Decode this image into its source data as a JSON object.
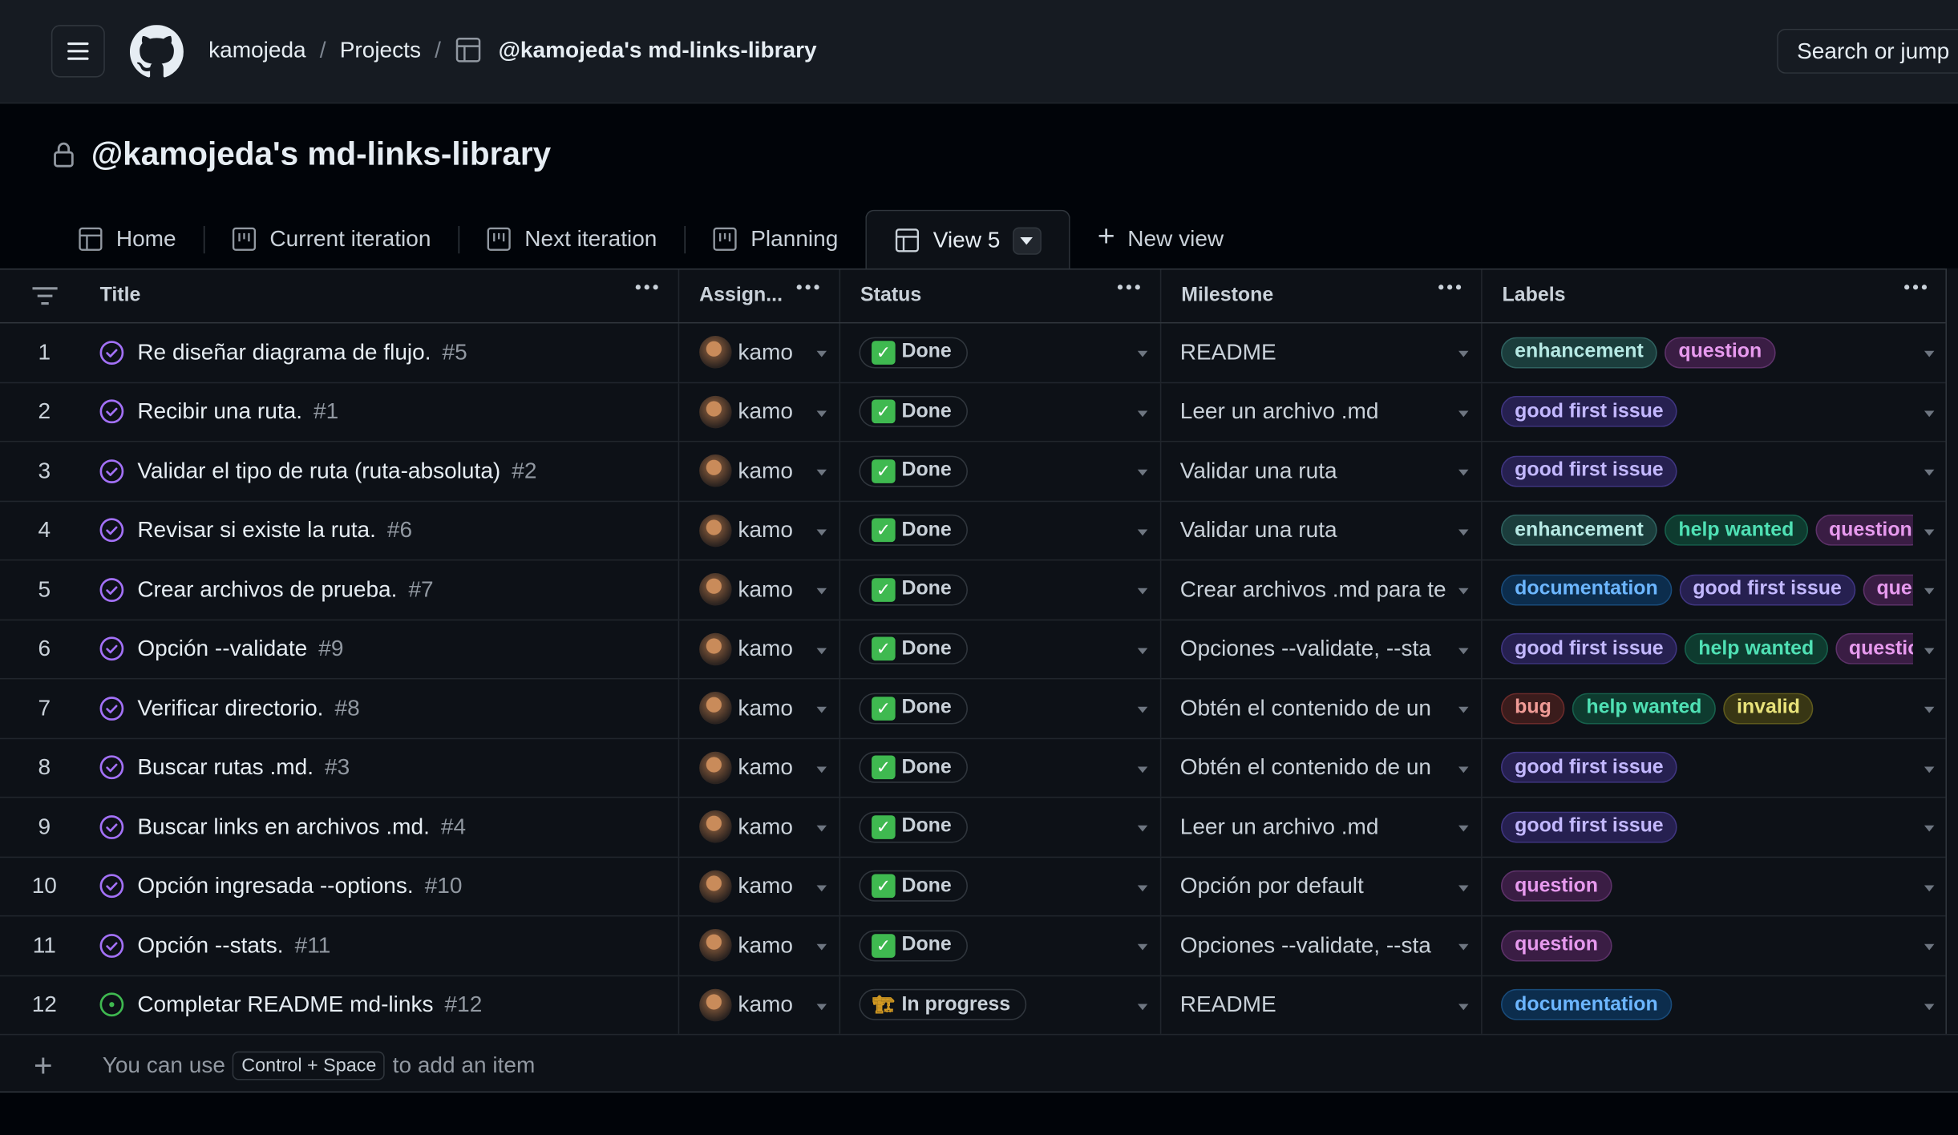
{
  "header": {
    "owner": "kamojeda",
    "section": "Projects",
    "project": "@kamojeda's md-links-library",
    "search_placeholder": "Search or jump"
  },
  "title": "@kamojeda's md-links-library",
  "tabs": [
    {
      "label": "Home",
      "icon": "table-icon"
    },
    {
      "label": "Current iteration",
      "icon": "board-icon"
    },
    {
      "label": "Next iteration",
      "icon": "board-icon"
    },
    {
      "label": "Planning",
      "icon": "board-icon"
    },
    {
      "label": "View 5",
      "icon": "table-icon",
      "active": true
    },
    {
      "label": "New view",
      "icon": "plus-icon"
    }
  ],
  "columns": {
    "title": "Title",
    "assignees": "Assign...",
    "status": "Status",
    "milestone": "Milestone",
    "labels": "Labels"
  },
  "rows": [
    {
      "n": "1",
      "title": "Re diseñar diagrama de flujo.",
      "issue": "#5",
      "assignee": "kamo",
      "status": "Done",
      "milestone": "README",
      "labels": [
        "enhancement",
        "question"
      ]
    },
    {
      "n": "2",
      "title": "Recibir una ruta.",
      "issue": "#1",
      "assignee": "kamo",
      "status": "Done",
      "milestone": "Leer un archivo .md",
      "labels": [
        "good first issue"
      ]
    },
    {
      "n": "3",
      "title": "Validar el tipo de ruta (ruta-absoluta)",
      "issue": "#2",
      "assignee": "kamo",
      "status": "Done",
      "milestone": "Validar una ruta",
      "labels": [
        "good first issue"
      ]
    },
    {
      "n": "4",
      "title": "Revisar si existe la ruta.",
      "issue": "#6",
      "assignee": "kamo",
      "status": "Done",
      "milestone": "Validar una ruta",
      "labels": [
        "enhancement",
        "help wanted",
        "question"
      ]
    },
    {
      "n": "5",
      "title": "Crear archivos de prueba.",
      "issue": "#7",
      "assignee": "kamo",
      "status": "Done",
      "milestone": "Crear archivos .md para te",
      "labels": [
        "documentation",
        "good first issue",
        "ques"
      ]
    },
    {
      "n": "6",
      "title": "Opción --validate",
      "issue": "#9",
      "assignee": "kamo",
      "status": "Done",
      "milestone": "Opciones --validate, --sta",
      "labels": [
        "good first issue",
        "help wanted",
        "questio"
      ]
    },
    {
      "n": "7",
      "title": "Verificar directorio.",
      "issue": "#8",
      "assignee": "kamo",
      "status": "Done",
      "milestone": "Obtén el contenido de un",
      "labels": [
        "bug",
        "help wanted",
        "invalid"
      ]
    },
    {
      "n": "8",
      "title": "Buscar rutas .md.",
      "issue": "#3",
      "assignee": "kamo",
      "status": "Done",
      "milestone": "Obtén el contenido de un",
      "labels": [
        "good first issue"
      ]
    },
    {
      "n": "9",
      "title": "Buscar links en archivos .md.",
      "issue": "#4",
      "assignee": "kamo",
      "status": "Done",
      "milestone": "Leer un archivo .md",
      "labels": [
        "good first issue"
      ]
    },
    {
      "n": "10",
      "title": "Opción ingresada --options.",
      "issue": "#10",
      "assignee": "kamo",
      "status": "Done",
      "milestone": "Opción por default",
      "labels": [
        "question"
      ]
    },
    {
      "n": "11",
      "title": "Opción --stats.",
      "issue": "#11",
      "assignee": "kamo",
      "status": "Done",
      "milestone": "Opciones --validate, --sta",
      "labels": [
        "question"
      ]
    },
    {
      "n": "12",
      "title": "Completar README md-links",
      "issue": "#12",
      "assignee": "kamo",
      "status": "In progress",
      "milestone": "README",
      "labels": [
        "documentation"
      ]
    }
  ],
  "add_item": {
    "prefix": "You can use",
    "shortcut": "Control + Space",
    "suffix": "to add an item"
  },
  "colors": {
    "accent_done": "#3fb950",
    "issue_closed": "#a371f7",
    "issue_open": "#3fb950"
  }
}
